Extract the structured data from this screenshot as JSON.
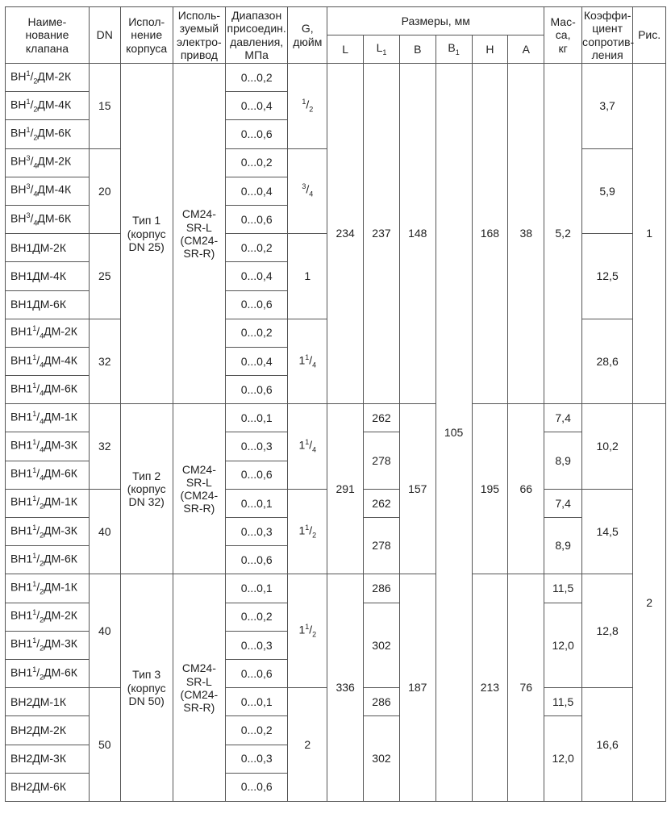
{
  "headers": {
    "name": "Наиме-\nнование\nклапана",
    "dn": "DN",
    "body": "Испол-\nнение\nкорпуса",
    "drive": "Исполь-\nзуемый\nэлектро-\nпривод",
    "press": "Диапазон\nприсоедин.\nдавления,\nМПа",
    "g": "G,\nдюйм",
    "dims": "Размеры, мм",
    "L": "L",
    "L1": "L",
    "L1sub": "1",
    "B": "B",
    "B1": "B",
    "B1sub": "1",
    "H": "H",
    "A": "A",
    "mass": "Мас-\nса,\nкг",
    "coef": "Коэффи-\nциент\nсопротив-\nления",
    "fig": "Рис."
  },
  "group1": {
    "body": "Тип 1\n(корпус\nDN 25)",
    "drive": "CM24-\nSR-L\n(CM24-\nSR-R)",
    "L": "234",
    "L1": "237",
    "B": "148",
    "H": "168",
    "A": "38",
    "mass": "5,2",
    "fig": "1",
    "dn": [
      {
        "dn": "15",
        "g": "1/2",
        "coef": "3,7",
        "rows": [
          {
            "name": "ВН1/2ДМ-2К",
            "p": "0...0,2"
          },
          {
            "name": "ВН1/2ДМ-4К",
            "p": "0...0,4"
          },
          {
            "name": "ВН1/2ДМ-6К",
            "p": "0...0,6"
          }
        ]
      },
      {
        "dn": "20",
        "g": "3/4",
        "coef": "5,9",
        "rows": [
          {
            "name": "ВН3/4ДМ-2К",
            "p": "0...0,2"
          },
          {
            "name": "ВН3/4ДМ-4К",
            "p": "0...0,4"
          },
          {
            "name": "ВН3/4ДМ-6К",
            "p": "0...0,6"
          }
        ]
      },
      {
        "dn": "25",
        "g": "1",
        "coef": "12,5",
        "rows": [
          {
            "name": "ВН1ДМ-2К",
            "p": "0...0,2"
          },
          {
            "name": "ВН1ДМ-4К",
            "p": "0...0,4"
          },
          {
            "name": "ВН1ДМ-6К",
            "p": "0...0,6"
          }
        ]
      },
      {
        "dn": "32",
        "g": "11/4",
        "coef": "28,6",
        "rows": [
          {
            "name": "ВН11/4ДМ-2К",
            "p": "0...0,2"
          },
          {
            "name": "ВН11/4ДМ-4К",
            "p": "0...0,4"
          },
          {
            "name": "ВН11/4ДМ-6К",
            "p": "0...0,6"
          }
        ]
      }
    ]
  },
  "B1": "105",
  "group2": {
    "body": "Тип 2\n(корпус\nDN 32)",
    "drive": "CM24-\nSR-L\n(CM24-\nSR-R)",
    "L": "291",
    "B": "157",
    "H": "195",
    "A": "66",
    "dn32": {
      "dn": "32",
      "g": "11/4",
      "coef": "10,2"
    },
    "dn40": {
      "dn": "40",
      "g": "11/2",
      "coef": "14,5"
    },
    "r": [
      {
        "name": "ВН11/4ДМ-1К",
        "p": "0...0,1",
        "L1": "262",
        "mass": "7,4"
      },
      {
        "name": "ВН11/4ДМ-3К",
        "p": "0...0,3",
        "L1": "278",
        "mass": "8,9"
      },
      {
        "name": "ВН11/4ДМ-6К",
        "p": "0...0,6"
      },
      {
        "name": "ВН11/2ДМ-1К",
        "p": "0...0,1",
        "L1": "262",
        "mass": "7,4"
      },
      {
        "name": "ВН11/2ДМ-3К",
        "p": "0...0,3",
        "L1": "278",
        "mass": "8,9"
      },
      {
        "name": "ВН11/2ДМ-6К",
        "p": "0...0,6"
      }
    ]
  },
  "group3": {
    "body": "Тип 3\n(корпус\nDN 50)",
    "drive": "CM24-\nSR-L\n(CM24-\nSR-R)",
    "L": "336",
    "B": "187",
    "H": "213",
    "A": "76",
    "fig": "2",
    "dn40": {
      "dn": "40",
      "g": "11/2",
      "coef": "12,8"
    },
    "dn50": {
      "dn": "50",
      "g": "2",
      "coef": "16,6"
    },
    "r": [
      {
        "name": "ВН11/2ДМ-1К",
        "p": "0...0,1",
        "L1": "286",
        "mass": "11,5"
      },
      {
        "name": "ВН11/2ДМ-2К",
        "p": "0...0,2",
        "L1": "302",
        "mass": "12,0"
      },
      {
        "name": "ВН11/2ДМ-3К",
        "p": "0...0,3"
      },
      {
        "name": "ВН11/2ДМ-6К",
        "p": "0...0,6"
      },
      {
        "name": "ВН2ДМ-1К",
        "p": "0...0,1",
        "L1": "286",
        "mass": "11,5"
      },
      {
        "name": "ВН2ДМ-2К",
        "p": "0...0,2",
        "L1": "302",
        "mass": "12,0"
      },
      {
        "name": "ВН2ДМ-3К",
        "p": "0...0,3"
      },
      {
        "name": "ВН2ДМ-6К",
        "p": "0...0,6"
      }
    ]
  }
}
